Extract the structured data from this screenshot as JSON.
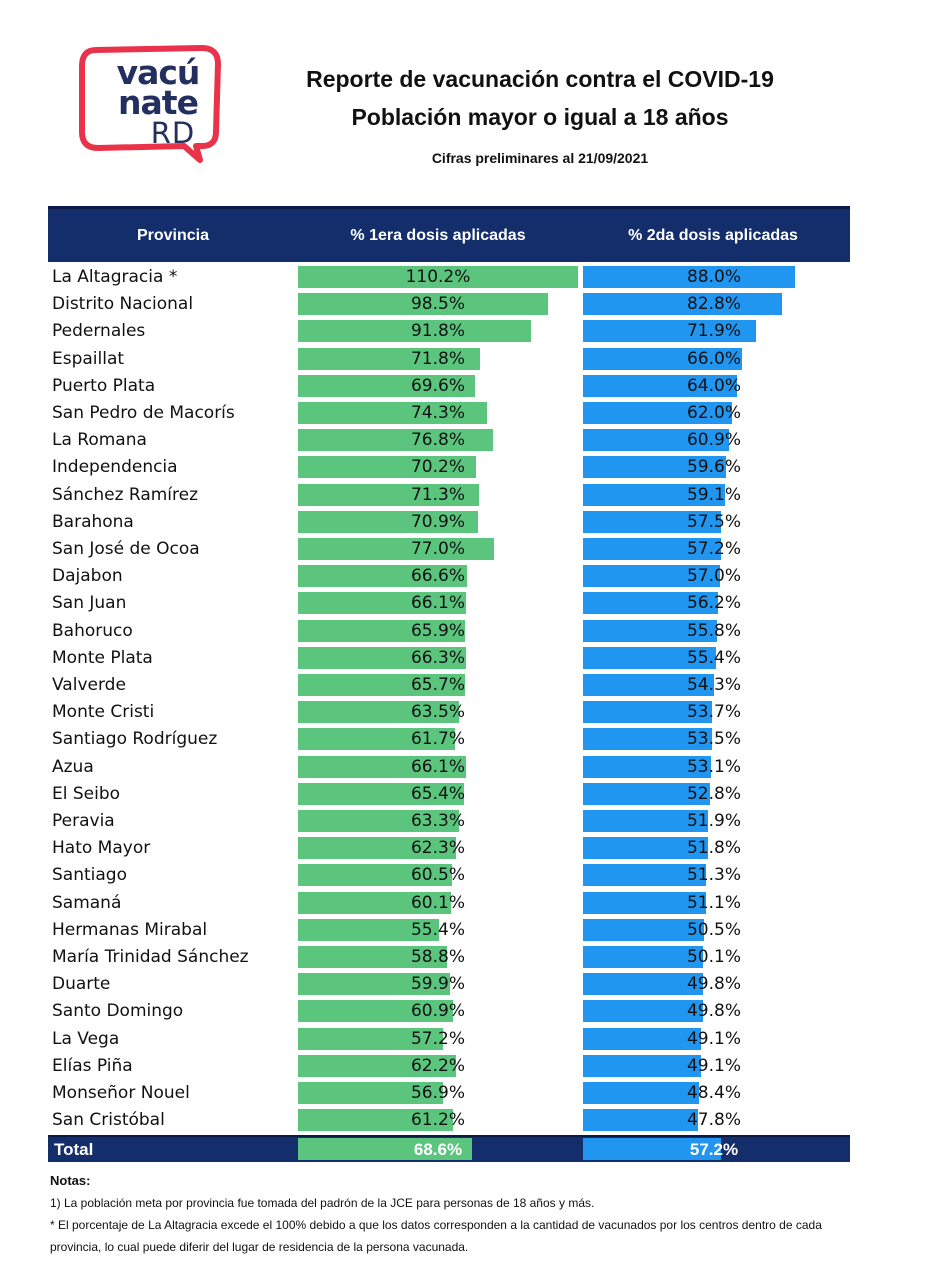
{
  "logo": {
    "line1": "vacú",
    "line2": "nate",
    "line3": "RD"
  },
  "header": {
    "title_line1": "Reporte de vacunación contra el COVID-19",
    "title_line2": "Población mayor o igual a 18 años",
    "subtitle": "Cifras preliminares al  21/09/2021"
  },
  "table": {
    "col_province": "Provincia",
    "col_dose1": "% 1era dosis aplicadas",
    "col_dose2": "% 2da dosis aplicadas"
  },
  "colors": {
    "dose1": "#5bc57e",
    "dose2": "#2196f0",
    "header_bg": "#142d6b"
  },
  "chart_data": {
    "type": "bar",
    "orientation": "horizontal",
    "categories": [
      "La Altagracia *",
      "Distrito Nacional",
      "Pedernales",
      "Espaillat",
      "Puerto Plata",
      "San Pedro de Macorís",
      "La Romana",
      "Independencia",
      "Sánchez Ramírez",
      "Barahona",
      "San José de Ocoa",
      "Dajabon",
      "San Juan",
      "Bahoruco",
      "Monte Plata",
      "Valverde",
      "Monte Cristi",
      "Santiago Rodríguez",
      "Azua",
      "El Seibo",
      "Peravia",
      "Hato Mayor",
      "Santiago",
      "Samaná",
      "Hermanas Mirabal",
      "María Trinidad Sánchez",
      "Duarte",
      "Santo Domingo",
      "La Vega",
      "Elías Piña",
      "Monseñor Nouel",
      "San Cristóbal"
    ],
    "series": [
      {
        "name": "% 1era dosis aplicadas",
        "values": [
          110.2,
          98.5,
          91.8,
          71.8,
          69.6,
          74.3,
          76.8,
          70.2,
          71.3,
          70.9,
          77.0,
          66.6,
          66.1,
          65.9,
          66.3,
          65.7,
          63.5,
          61.7,
          66.1,
          65.4,
          63.3,
          62.3,
          60.5,
          60.1,
          55.4,
          58.8,
          59.9,
          60.9,
          57.2,
          62.2,
          56.9,
          61.2
        ],
        "labels": [
          "110.2%",
          "98.5%",
          "91.8%",
          "71.8%",
          "69.6%",
          "74.3%",
          "76.8%",
          "70.2%",
          "71.3%",
          "70.9%",
          "77.0%",
          "66.6%",
          "66.1%",
          "65.9%",
          "66.3%",
          "65.7%",
          "63.5%",
          "61.7%",
          "66.1%",
          "65.4%",
          "63.3%",
          "62.3%",
          "60.5%",
          "60.1%",
          "55.4%",
          "58.8%",
          "59.9%",
          "60.9%",
          "57.2%",
          "62.2%",
          "56.9%",
          "61.2%"
        ]
      },
      {
        "name": "% 2da dosis aplicadas",
        "values": [
          88.0,
          82.8,
          71.9,
          66.0,
          64.0,
          62.0,
          60.9,
          59.6,
          59.1,
          57.5,
          57.2,
          57.0,
          56.2,
          55.8,
          55.4,
          54.3,
          53.7,
          53.5,
          53.1,
          52.8,
          51.9,
          51.8,
          51.3,
          51.1,
          50.5,
          50.1,
          49.8,
          49.8,
          49.1,
          49.1,
          48.4,
          47.8
        ],
        "labels": [
          "88.0%",
          "82.8%",
          "71.9%",
          "66.0%",
          "64.0%",
          "62.0%",
          "60.9%",
          "59.6%",
          "59.1%",
          "57.5%",
          "57.2%",
          "57.0%",
          "56.2%",
          "55.8%",
          "55.4%",
          "54.3%",
          "53.7%",
          "53.5%",
          "53.1%",
          "52.8%",
          "51.9%",
          "51.8%",
          "51.3%",
          "51.1%",
          "50.5%",
          "50.1%",
          "49.8%",
          "49.8%",
          "49.1%",
          "49.1%",
          "48.4%",
          "47.8%"
        ]
      }
    ],
    "total": {
      "label": "Total",
      "dose1": 68.6,
      "dose1_label": "68.6%",
      "dose2": 57.2,
      "dose2_label": "57.2%"
    },
    "xlim": [
      0,
      110.2
    ]
  },
  "notes": {
    "heading": "Notas:",
    "note1": "1) La población meta por provincia fue tomada del padrón de la JCE para personas de 18 años y más.",
    "note2": "* El porcentaje de La Altagracia excede el 100% debido a que los datos corresponden a la cantidad de vacunados por los centros dentro de cada provincia, lo cual puede diferir del lugar de residencia de la persona vacunada."
  }
}
